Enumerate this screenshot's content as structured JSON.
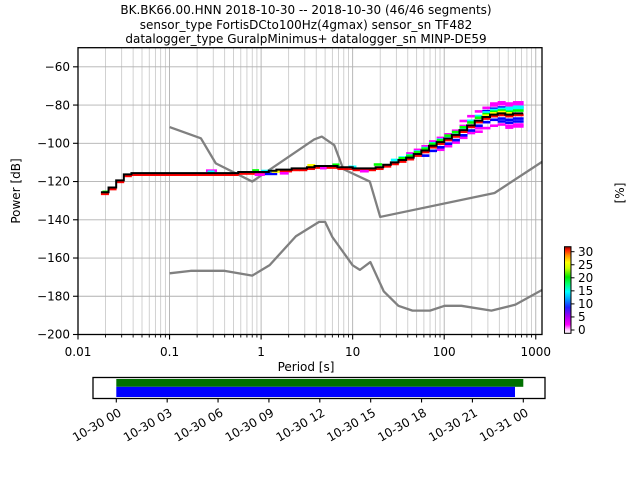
{
  "figure": {
    "title_lines": [
      "BK.BK66.00.HNN   2018-10-30 -- 2018-10-30  (46/46 segments)",
      "sensor_type FortisDCto100Hz(4gmax) sensor_sn TF482",
      "datalogger_type GuralpMinimus+ datalogger_sn MINP-DE59"
    ]
  },
  "axes": {
    "ylabel": "Power [dB]",
    "xlabel": "Period [s]",
    "colorbar_label": "[%]"
  },
  "chart_data": {
    "type": "line",
    "xscale": "log",
    "xlim": [
      0.01,
      1170
    ],
    "ylim": [
      -200,
      -50
    ],
    "xlabel": "Period [s]",
    "ylabel": "Power [dB]",
    "grid": "major-xy+minor-x",
    "x_ticks": [
      {
        "value": 0.01,
        "label": "0.01"
      },
      {
        "value": 0.1,
        "label": "0.1"
      },
      {
        "value": 1,
        "label": "1"
      },
      {
        "value": 10,
        "label": "10"
      },
      {
        "value": 100,
        "label": "100"
      },
      {
        "value": 1000,
        "label": "1000"
      }
    ],
    "y_ticks": [
      {
        "value": -60,
        "label": "−60"
      },
      {
        "value": -80,
        "label": "−80"
      },
      {
        "value": -100,
        "label": "−100"
      },
      {
        "value": -120,
        "label": "−120"
      },
      {
        "value": -140,
        "label": "−140"
      },
      {
        "value": -160,
        "label": "−160"
      },
      {
        "value": -180,
        "label": "−180"
      },
      {
        "value": -200,
        "label": "−200"
      }
    ],
    "series": [
      {
        "name": "ppsd_mode",
        "color": "#000000",
        "points": [
          [
            0.0178,
            -126.6
          ],
          [
            0.019,
            -126.2
          ],
          [
            0.0205,
            -124.6
          ],
          [
            0.022,
            -123.6
          ],
          [
            0.0245,
            -123.2
          ],
          [
            0.026,
            -122.6
          ],
          [
            0.028,
            -120.6
          ],
          [
            0.03,
            -118.2
          ],
          [
            0.033,
            -116.2
          ],
          [
            0.038,
            -115.6
          ],
          [
            0.06,
            -115.6
          ],
          [
            0.1,
            -115.6
          ],
          [
            0.2,
            -115.6
          ],
          [
            0.4,
            -115.5
          ],
          [
            0.7,
            -115.2
          ],
          [
            1.0,
            -114.9
          ],
          [
            1.5,
            -114.2
          ],
          [
            2.2,
            -113.4
          ],
          [
            3.2,
            -112.6
          ],
          [
            4.5,
            -111.9
          ],
          [
            6,
            -111.8
          ],
          [
            8,
            -112.3
          ],
          [
            10.5,
            -113.0
          ],
          [
            13,
            -113.4
          ],
          [
            16,
            -113.2
          ],
          [
            20,
            -112.3
          ],
          [
            25,
            -111.2
          ],
          [
            30,
            -109.9
          ],
          [
            38,
            -108.2
          ],
          [
            48,
            -106.2
          ],
          [
            60,
            -104.0
          ],
          [
            72,
            -101.8
          ],
          [
            85,
            -100.2
          ],
          [
            100,
            -98.4
          ],
          [
            120,
            -96.6
          ],
          [
            145,
            -94.6
          ],
          [
            175,
            -92.2
          ],
          [
            210,
            -89.8
          ],
          [
            250,
            -87.6
          ],
          [
            290,
            -86.2
          ],
          [
            330,
            -85.2
          ],
          [
            380,
            -84.6
          ],
          [
            440,
            -84.4
          ],
          [
            500,
            -84.9
          ],
          [
            560,
            -84.3
          ],
          [
            640,
            -84.6
          ],
          [
            730,
            -84.4
          ]
        ]
      },
      {
        "name": "noise_model_high_NHNM",
        "color": "#808080",
        "points": [
          [
            0.1,
            -91.5
          ],
          [
            0.22,
            -97.4
          ],
          [
            0.32,
            -110.5
          ],
          [
            0.8,
            -120.0
          ],
          [
            3.8,
            -98.0
          ],
          [
            4.6,
            -96.5
          ],
          [
            6.3,
            -101.0
          ],
          [
            7.9,
            -113.5
          ],
          [
            15.4,
            -120.0
          ],
          [
            20,
            -138.5
          ],
          [
            354.8,
            -126.0
          ],
          [
            1170,
            -109.7
          ]
        ]
      },
      {
        "name": "noise_model_low_NLNM",
        "color": "#808080",
        "points": [
          [
            0.1,
            -168.0
          ],
          [
            0.17,
            -166.7
          ],
          [
            0.4,
            -166.7
          ],
          [
            0.8,
            -169.2
          ],
          [
            1.24,
            -163.7
          ],
          [
            2.4,
            -148.6
          ],
          [
            4.3,
            -141.1
          ],
          [
            5,
            -141.1
          ],
          [
            6,
            -149.0
          ],
          [
            10,
            -163.8
          ],
          [
            12,
            -166.2
          ],
          [
            15.6,
            -162.1
          ],
          [
            21.9,
            -177.5
          ],
          [
            31.6,
            -185.0
          ],
          [
            45,
            -187.5
          ],
          [
            70,
            -187.5
          ],
          [
            101,
            -185.0
          ],
          [
            154,
            -185.0
          ],
          [
            328,
            -187.5
          ],
          [
            600,
            -184.4
          ],
          [
            1170,
            -176.7
          ]
        ]
      }
    ],
    "histogram_bands": [
      {
        "color": "#ff00ff",
        "db_offset": 4.8,
        "p_from": 160,
        "p_to": 730
      },
      {
        "color": "#ff00ff",
        "db_offset": 5.8,
        "p_from": 300,
        "p_to": 730
      },
      {
        "color": "#ff00ff",
        "db_offset": -5.8,
        "p_from": 230,
        "p_to": 730
      },
      {
        "color": "#ff00ff",
        "db_offset": -6.8,
        "p_from": 430,
        "p_to": 730
      },
      {
        "color": "#ff00ff",
        "db_offset": 2.2,
        "p_from": 35,
        "p_to": 200
      },
      {
        "color": "#ff00ff",
        "db_offset": -4.0,
        "p_from": 90,
        "p_to": 250
      },
      {
        "color": "#0000ff",
        "db_offset": 3.1,
        "p_from": 280,
        "p_to": 730
      },
      {
        "color": "#0000ff",
        "db_offset": -2.7,
        "p_from": 55,
        "p_to": 730
      },
      {
        "color": "#0000ff",
        "db_offset": -4.2,
        "p_from": 400,
        "p_to": 730
      },
      {
        "color": "#00ffff",
        "db_offset": 1.3,
        "p_from": 25,
        "p_to": 190
      },
      {
        "color": "#00ffff",
        "db_offset": 2.4,
        "p_from": 190,
        "p_to": 730
      },
      {
        "color": "#00ffff",
        "db_offset": 3.5,
        "p_from": 430,
        "p_to": 730
      },
      {
        "color": "#00ff00",
        "db_offset": 1.5,
        "p_from": 110,
        "p_to": 730
      },
      {
        "color": "#00ff00",
        "db_offset": 0.9,
        "p_from": 30,
        "p_to": 110
      },
      {
        "color": "#ffff00",
        "db_offset": 0.7,
        "p_from": 260,
        "p_to": 570
      },
      {
        "color": "#ff0000",
        "db_offset": -0.8,
        "p_from": 0.0178,
        "p_to": 730
      }
    ],
    "histogram_cells": [
      {
        "color": "#00ff00",
        "p_from": 0.0185,
        "p_to": 0.021,
        "db": -125.4
      },
      {
        "color": "#ff00ff",
        "p_from": 0.25,
        "p_to": 0.33,
        "db": -114.3
      },
      {
        "color": "#00ffff",
        "p_from": 0.26,
        "p_to": 0.31,
        "db": -114.9
      },
      {
        "color": "#00ff00",
        "p_from": 0.8,
        "p_to": 0.95,
        "db": -114.2
      },
      {
        "color": "#ff00ff",
        "p_from": 0.85,
        "p_to": 1.1,
        "db": -116.4
      },
      {
        "color": "#00ffff",
        "p_from": 1.0,
        "p_to": 1.3,
        "db": -114.5
      },
      {
        "color": "#0000ff",
        "p_from": 1.1,
        "p_to": 1.5,
        "db": -116.0
      },
      {
        "color": "#ffff00",
        "p_from": 1.3,
        "p_to": 1.6,
        "db": -114.8
      },
      {
        "color": "#ff00ff",
        "p_from": 1.6,
        "p_to": 2.0,
        "db": -115.7
      },
      {
        "color": "#ffff00",
        "p_from": 3.2,
        "p_to": 3.9,
        "db": -111.5
      },
      {
        "color": "#ff00ff",
        "p_from": 4.4,
        "p_to": 5.2,
        "db": -113.0
      },
      {
        "color": "#00ff00",
        "p_from": 6.0,
        "p_to": 7.2,
        "db": -111.2
      },
      {
        "color": "#00ffff",
        "p_from": 9.0,
        "p_to": 11.0,
        "db": -112.3
      },
      {
        "color": "#ff00ff",
        "p_from": 12.0,
        "p_to": 15.0,
        "db": -114.6
      },
      {
        "color": "#00ff00",
        "p_from": 17.0,
        "p_to": 21.0,
        "db": -111.1
      }
    ],
    "colorbar": {
      "label": "[%]",
      "ticks": [
        {
          "value": 30,
          "label": "30"
        },
        {
          "value": 25,
          "label": "25"
        },
        {
          "value": 20,
          "label": "20"
        },
        {
          "value": 15,
          "label": "15"
        },
        {
          "value": 10,
          "label": "10"
        },
        {
          "value": 5,
          "label": "5"
        },
        {
          "value": 0,
          "label": "0"
        }
      ],
      "gradient": [
        {
          "pos": 0.0,
          "color": "#ffffff"
        },
        {
          "pos": 0.04,
          "color": "#ffc8ff"
        },
        {
          "pos": 0.1,
          "color": "#ff00ff"
        },
        {
          "pos": 0.2,
          "color": "#a000f0"
        },
        {
          "pos": 0.3,
          "color": "#2020ff"
        },
        {
          "pos": 0.4,
          "color": "#00a8ff"
        },
        {
          "pos": 0.48,
          "color": "#00ffff"
        },
        {
          "pos": 0.58,
          "color": "#00ff60"
        },
        {
          "pos": 0.65,
          "color": "#00e400"
        },
        {
          "pos": 0.75,
          "color": "#c8ff00"
        },
        {
          "pos": 0.82,
          "color": "#ffff00"
        },
        {
          "pos": 0.9,
          "color": "#ff9000"
        },
        {
          "pos": 0.96,
          "color": "#ff1e00"
        },
        {
          "pos": 1.0,
          "color": "#8c0000"
        }
      ]
    },
    "timeline": {
      "tick_labels": [
        "10-30 00",
        "10-30 03",
        "10-30 06",
        "10-30 09",
        "10-30 12",
        "10-30 15",
        "10-30 18",
        "10-30 21",
        "10-31 00"
      ],
      "bars": [
        {
          "name": "data_coverage",
          "color": "#007000",
          "start_frac": 0.0,
          "end_frac": 1.0
        },
        {
          "name": "used_psd_segments",
          "color": "#0000ff",
          "start_frac": 0.0,
          "end_frac": 0.9796
        }
      ]
    }
  }
}
